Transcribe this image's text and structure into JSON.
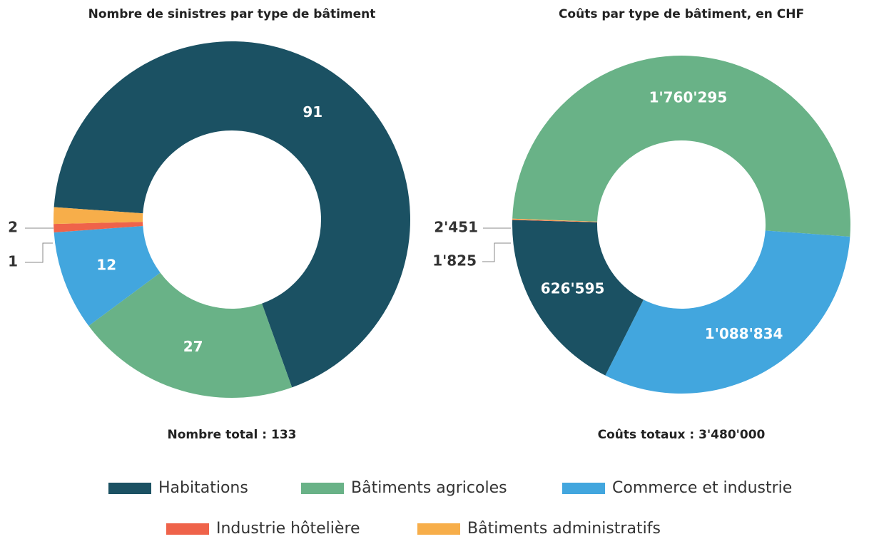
{
  "chart_data": [
    {
      "type": "pie",
      "title": "Nombre de sinistres par type de bâtiment",
      "categories": [
        "Habitations",
        "Bâtiments agricoles",
        "Commerce et industrie",
        "Industrie hôtelière",
        "Bâtiments administratifs"
      ],
      "values": [
        91,
        27,
        12,
        1,
        2
      ],
      "colors": [
        "#1b5163",
        "#69b287",
        "#42a6de",
        "#ef634a",
        "#f7ae4a"
      ],
      "total_label": "Nombre total : 133"
    },
    {
      "type": "pie",
      "title": "Coûts par type de bâtiment, en CHF",
      "values": [
        626595,
        1760295,
        1088834,
        1825,
        2451
      ],
      "value_labels": [
        "626'595",
        "1'760'295",
        "1'088'834",
        "1'825",
        "2'451"
      ],
      "colors": [
        "#1b5163",
        "#69b287",
        "#42a6de",
        "#ef634a",
        "#f7ae4a"
      ],
      "total_label": "Coûts totaux : 3'480'000"
    }
  ]
}
